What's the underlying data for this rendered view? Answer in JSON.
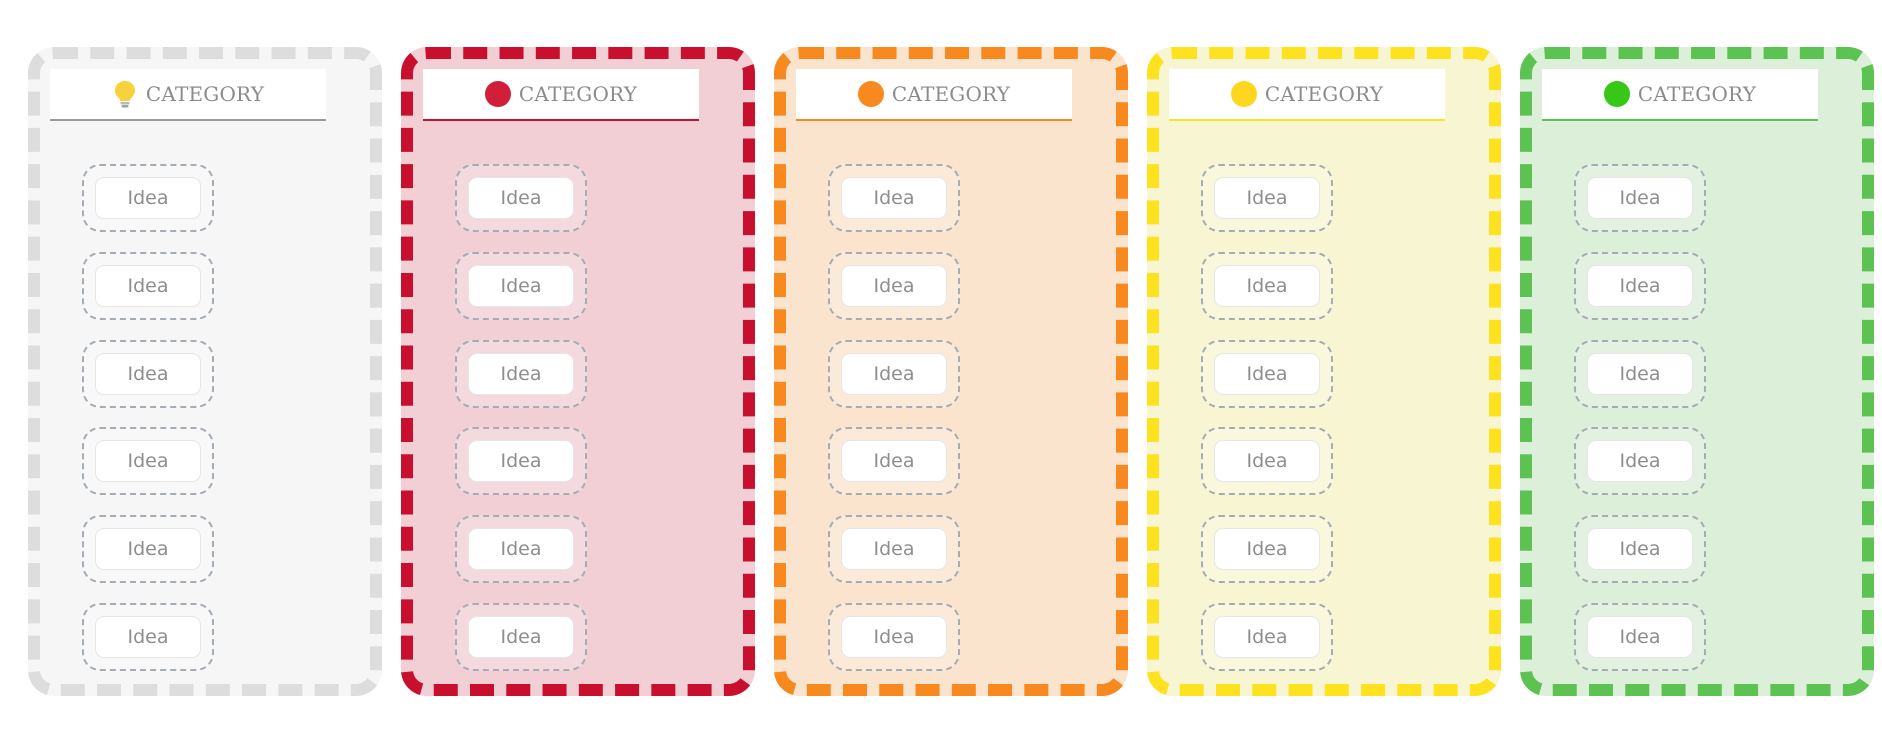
{
  "columns": [
    {
      "title": "CATEGORY",
      "icon": "lightbulb-icon",
      "border_color": "#dddddd",
      "fill_color": "#f6f6f6",
      "icon_color": "#f7d23c",
      "ideas": [
        "Idea",
        "Idea",
        "Idea",
        "Idea",
        "Idea",
        "Idea"
      ]
    },
    {
      "title": "CATEGORY",
      "icon": "red-dot-icon",
      "border_color": "#c8102e",
      "fill_color": "#f1cfd5",
      "icon_color": "#d11f3a",
      "ideas": [
        "Idea",
        "Idea",
        "Idea",
        "Idea",
        "Idea",
        "Idea"
      ]
    },
    {
      "title": "CATEGORY",
      "icon": "orange-dot-icon",
      "border_color": "#f7891f",
      "fill_color": "#fbe4cd",
      "icon_color": "#f7891f",
      "ideas": [
        "Idea",
        "Idea",
        "Idea",
        "Idea",
        "Idea",
        "Idea"
      ]
    },
    {
      "title": "CATEGORY",
      "icon": "yellow-dot-icon",
      "border_color": "#ffe21f",
      "fill_color": "#f8f5d2",
      "icon_color": "#ffd61f",
      "ideas": [
        "Idea",
        "Idea",
        "Idea",
        "Idea",
        "Idea",
        "Idea"
      ]
    },
    {
      "title": "CATEGORY",
      "icon": "green-dot-icon",
      "border_color": "#5cc352",
      "fill_color": "#dcefd8",
      "icon_color": "#37c817",
      "ideas": [
        "Idea",
        "Idea",
        "Idea",
        "Idea",
        "Idea",
        "Idea"
      ]
    }
  ]
}
